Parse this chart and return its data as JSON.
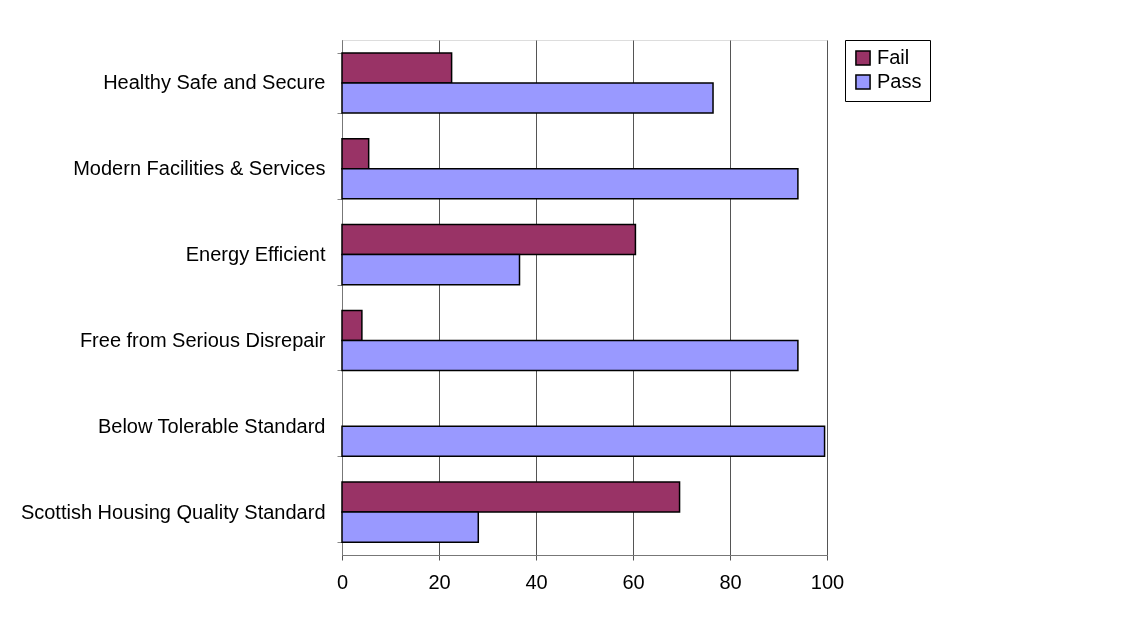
{
  "chart_data": {
    "type": "bar",
    "orientation": "horizontal",
    "categories": [
      "Healthy Safe and Secure",
      "Modern Facilities & Services",
      "Energy Efficient",
      "Free from Serious Disrepair",
      "Below Tolerable Standard",
      "Scottish Housing Quality Standard"
    ],
    "series": [
      {
        "name": "Fail",
        "color": "#993366",
        "values": [
          22.6,
          5.5,
          60.5,
          4.1,
          null,
          69.6
        ]
      },
      {
        "name": "Pass",
        "color": "#9999ff",
        "values": [
          76.5,
          94.0,
          36.6,
          94.0,
          99.5,
          28.1
        ]
      }
    ],
    "xlim": [
      0,
      100
    ],
    "xticks": [
      0,
      20,
      40,
      60,
      80,
      100
    ],
    "grid": "x",
    "legend": "right"
  }
}
